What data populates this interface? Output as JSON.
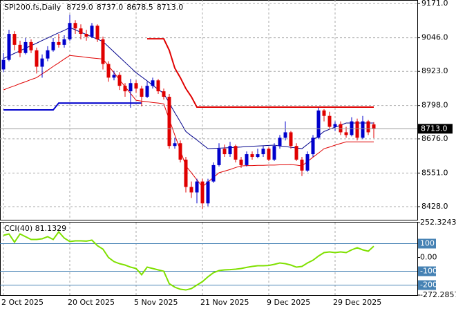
{
  "chart_data": [
    {
      "type": "candlestick",
      "title": "SPI200.fs,Daily",
      "last_labels": [
        "8729.0",
        "8737.0",
        "8678.5",
        "8713.0"
      ],
      "categories": [
        "2 Oct 2025",
        null,
        null,
        null,
        null,
        null,
        null,
        null,
        null,
        null,
        null,
        null,
        "20 Oct 2025",
        null,
        null,
        null,
        null,
        null,
        null,
        null,
        null,
        null,
        null,
        null,
        "5 Nov 2025",
        null,
        null,
        null,
        null,
        null,
        null,
        null,
        null,
        null,
        null,
        null,
        "21 Nov 2025",
        null,
        null,
        null,
        null,
        null,
        null,
        null,
        null,
        null,
        null,
        null,
        "9 Dec 2025",
        null,
        null,
        null,
        null,
        null,
        null,
        null,
        null,
        null,
        null,
        null,
        "29 Dec 2025",
        null,
        null,
        null,
        null,
        null,
        null,
        null
      ],
      "open": [
        8930,
        8965,
        9060,
        9020,
        8990,
        9030,
        9000,
        8940,
        8970,
        9000,
        9030,
        9020,
        9040,
        9100,
        9080,
        9060,
        9050,
        9090,
        9040,
        8950,
        8900,
        8910,
        8870,
        8850,
        8880,
        8860,
        8830,
        8870,
        8890,
        8850,
        8830,
        8650,
        8660,
        8600,
        8500,
        8480,
        8520,
        8440,
        8520,
        8580,
        8640,
        8620,
        8650,
        8600,
        8580,
        8620,
        8610,
        8620,
        8640,
        8600,
        8650,
        8680,
        8700,
        8650,
        8600,
        8560,
        8620,
        8680,
        8780,
        8760,
        8720,
        8730,
        8700,
        8690,
        8740,
        8680,
        8740,
        8729
      ],
      "high": [
        8990,
        9075,
        9070,
        9035,
        9045,
        9040,
        9010,
        8985,
        9015,
        9045,
        9060,
        9055,
        9130,
        9110,
        9095,
        9075,
        9100,
        9095,
        9050,
        8960,
        8925,
        8920,
        8880,
        8895,
        8890,
        8870,
        8885,
        8900,
        8895,
        8860,
        8840,
        8680,
        8670,
        8610,
        8520,
        8530,
        8530,
        8530,
        8590,
        8660,
        8655,
        8665,
        8655,
        8610,
        8630,
        8630,
        8640,
        8650,
        8645,
        8660,
        8690,
        8740,
        8705,
        8660,
        8610,
        8630,
        8690,
        8790,
        8785,
        8775,
        8740,
        8740,
        8720,
        8755,
        8750,
        8760,
        8745,
        8737
      ],
      "low": [
        8920,
        8960,
        9000,
        8975,
        8985,
        8990,
        8915,
        8900,
        8960,
        8995,
        9010,
        9010,
        9035,
        9060,
        9040,
        9035,
        9045,
        9030,
        8930,
        8885,
        8890,
        8855,
        8830,
        8790,
        8845,
        8795,
        8825,
        8860,
        8840,
        8820,
        8640,
        8640,
        8590,
        8480,
        8460,
        8440,
        8420,
        8430,
        8515,
        8575,
        8610,
        8610,
        8590,
        8570,
        8575,
        8600,
        8605,
        8610,
        8595,
        8595,
        8640,
        8670,
        8640,
        8595,
        8540,
        8555,
        8610,
        8675,
        8740,
        8710,
        8705,
        8690,
        8680,
        8685,
        8670,
        8675,
        8690,
        8678.5
      ],
      "close": [
        8965,
        9060,
        9020,
        8990,
        9030,
        9000,
        8940,
        8970,
        9000,
        9030,
        9020,
        9040,
        9100,
        9080,
        9060,
        9050,
        9090,
        9040,
        8950,
        8900,
        8910,
        8870,
        8850,
        8880,
        8860,
        8830,
        8870,
        8890,
        8850,
        8830,
        8650,
        8660,
        8600,
        8500,
        8480,
        8520,
        8440,
        8520,
        8580,
        8640,
        8620,
        8650,
        8600,
        8580,
        8620,
        8610,
        8620,
        8640,
        8600,
        8650,
        8680,
        8700,
        8650,
        8600,
        8560,
        8620,
        8680,
        8780,
        8760,
        8720,
        8730,
        8700,
        8690,
        8740,
        8680,
        8740,
        8700,
        8713
      ],
      "up_color": "#0000cc",
      "down_color": "#e00000",
      "series": [
        {
          "color": "#00008b",
          "values": [
            8970,
            8979,
            8989,
            8998,
            9008,
            9017,
            9026,
            9036,
            9045,
            9055,
            9064,
            9073,
            9083,
            9075,
            9066,
            9058,
            9049,
            9041,
            9032,
            9013,
            8994,
            8975,
            8956,
            8937,
            8918,
            8903,
            8888,
            8872,
            8857,
            8842,
            8807,
            8772,
            8738,
            8703,
            8687,
            8672,
            8656,
            8640,
            8641,
            8642,
            8643,
            8644,
            8645,
            8646,
            8648,
            8649,
            8650,
            8651,
            8652,
            8653,
            8650,
            8648,
            8645,
            8643,
            8640,
            8656,
            8672,
            8687,
            8703,
            8711,
            8719,
            8726,
            8734,
            8734,
            8734,
            8734,
            8734,
            8734
          ]
        },
        {
          "color": "#e00000",
          "values": [
            8855,
            8863,
            8870,
            8878,
            8885,
            8893,
            8900,
            8914,
            8927,
            8941,
            8954,
            8968,
            8981,
            8979,
            8977,
            8974,
            8972,
            8970,
            8968,
            8943,
            8918,
            8892,
            8867,
            8842,
            8817,
            8814,
            8812,
            8809,
            8807,
            8804,
            8747,
            8690,
            8634,
            8577,
            8552,
            8526,
            8501,
            8518,
            8535,
            8552,
            8558,
            8564,
            8571,
            8577,
            8578,
            8578,
            8579,
            8579,
            8580,
            8580,
            8581,
            8581,
            8582,
            8580,
            8577,
            8593,
            8609,
            8624,
            8640,
            8646,
            8653,
            8659,
            8665,
            8665,
            8665,
            8665,
            8665,
            8665
          ]
        },
        {
          "color": "#e00000",
          "width": 2,
          "values": [
            null,
            null,
            null,
            null,
            null,
            null,
            null,
            null,
            null,
            null,
            null,
            null,
            null,
            null,
            null,
            null,
            null,
            null,
            null,
            null,
            null,
            null,
            null,
            null,
            null,
            null,
            9042,
            9042,
            9042,
            9042,
            9000,
            8935,
            8900,
            8860,
            8830,
            8792,
            8792,
            8792,
            8792,
            8792,
            8792,
            8792,
            8792,
            8792,
            8792,
            8792,
            8792,
            8792,
            8792,
            8792,
            8792,
            8792,
            8792,
            8792,
            8792,
            8792,
            8792,
            8792,
            8792,
            8792,
            8792,
            8792,
            8792,
            8792,
            8792,
            8792,
            8792,
            8792
          ]
        },
        {
          "color": "#0000cc",
          "width": 2,
          "values": [
            8782,
            8782,
            8782,
            8782,
            8782,
            8782,
            8782,
            8782,
            8782,
            8782,
            8807,
            8807,
            8807,
            8807,
            8807,
            8807,
            8807,
            8807,
            8807,
            8807,
            8807,
            8807,
            8807,
            8807,
            8807,
            8807,
            null,
            null,
            null,
            null,
            null,
            null,
            null,
            null,
            null,
            null,
            null,
            null,
            null,
            null,
            null,
            null,
            null,
            null,
            null,
            null,
            null,
            null,
            null,
            null,
            null,
            null,
            null,
            null,
            null,
            null,
            null,
            null,
            null,
            null,
            null,
            null,
            null,
            null,
            null,
            null,
            null,
            null
          ]
        }
      ],
      "ylim": [
        8380,
        9184
      ],
      "yticks": [
        {
          "value": 9171,
          "label": "9171.0"
        },
        {
          "value": 9046,
          "label": "9046.0"
        },
        {
          "value": 8923,
          "label": "8923.0"
        },
        {
          "value": 8798,
          "label": "8798.0"
        },
        {
          "value": 8676,
          "label": "8676.0"
        },
        {
          "value": 8551,
          "label": "8551.0"
        },
        {
          "value": 8428,
          "label": "8428.0"
        }
      ],
      "grid": true
    },
    {
      "type": "line",
      "title": "CCI(40) 81.1329",
      "color": "#7fe000",
      "values": [
        160,
        170,
        110,
        170,
        150,
        130,
        130,
        135,
        150,
        130,
        185,
        140,
        115,
        120,
        120,
        118,
        125,
        85,
        60,
        0,
        -30,
        -45,
        -55,
        -70,
        -80,
        -125,
        -70,
        -80,
        -90,
        -100,
        -190,
        -215,
        -230,
        -235,
        -225,
        -200,
        -175,
        -140,
        -110,
        -95,
        -90,
        -88,
        -85,
        -80,
        -72,
        -65,
        -60,
        -60,
        -58,
        -50,
        -40,
        -45,
        -55,
        -70,
        -65,
        -40,
        -20,
        10,
        35,
        40,
        35,
        40,
        35,
        55,
        70,
        55,
        45,
        81.1329
      ],
      "ylim": [
        -272.2857,
        252.3243
      ],
      "yticks": [
        252.3243,
        100,
        {
          "value": 0,
          "label": "0.00"
        },
        -100,
        -200,
        -272.2857
      ],
      "levels": [
        100,
        -100,
        -200
      ],
      "level_color": "#4682b4"
    }
  ]
}
